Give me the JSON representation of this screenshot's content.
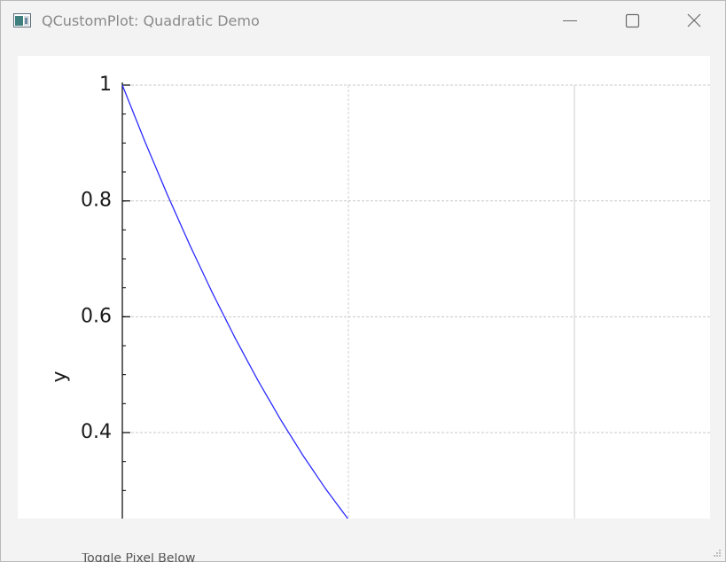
{
  "window": {
    "title": "QCustomPlot: Quadratic Demo",
    "icon": "qt-app-icon",
    "controls": [
      "minimize-icon",
      "maximize-icon",
      "close-icon"
    ]
  },
  "partial_text": "Toggle Pixel Below",
  "chart_data": {
    "type": "line",
    "title": "",
    "xlabel": "",
    "ylabel": "y",
    "xlim": [
      0,
      1.28
    ],
    "ylim": [
      0.25,
      1.0
    ],
    "y_ticks": [
      0.4,
      0.6,
      0.8,
      1.0
    ],
    "y_tick_labels": [
      "0.4",
      "0.6",
      "0.8",
      "1"
    ],
    "x_grid": [
      0.5,
      1.0
    ],
    "grid": true,
    "series": [
      {
        "color": "#2b2bff",
        "x": [
          0.0,
          0.05,
          0.1,
          0.15,
          0.2,
          0.25,
          0.3,
          0.35,
          0.4,
          0.45,
          0.5
        ],
        "y": [
          1.0,
          0.9025,
          0.81,
          0.7225,
          0.64,
          0.5625,
          0.49,
          0.4225,
          0.36,
          0.3025,
          0.25
        ]
      }
    ]
  }
}
